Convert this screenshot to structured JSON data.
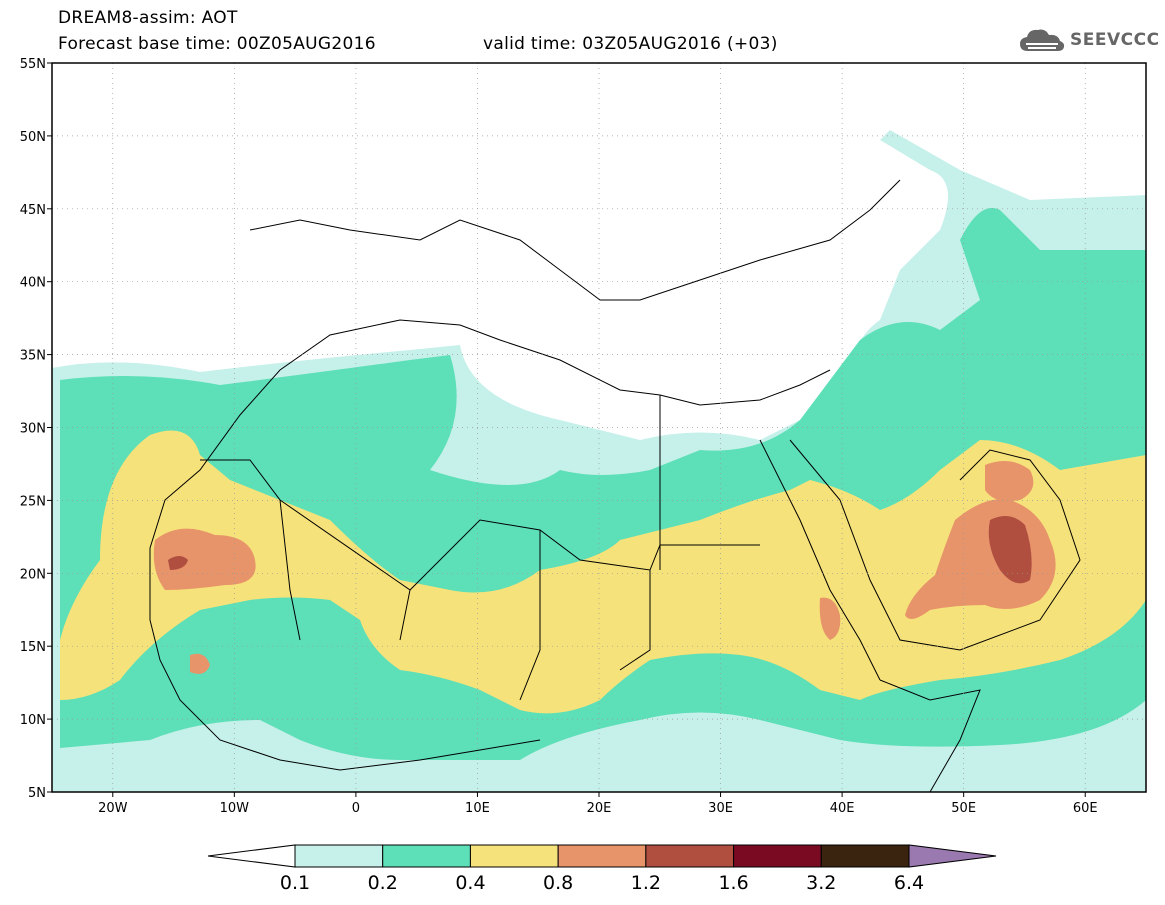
{
  "title": {
    "line1": "DREAM8-assim: AOT",
    "base_time": "Forecast base time: 00Z05AUG2016",
    "valid_time": "valid time: 03Z05AUG2016 (+03)"
  },
  "logo": {
    "text": "SEEVCCC",
    "icon": "cloud-icon"
  },
  "map": {
    "lon_range": [
      -25,
      65
    ],
    "lat_range": [
      5,
      55
    ],
    "lat_ticks": [
      {
        "value": 55,
        "label": "55N"
      },
      {
        "value": 50,
        "label": "50N"
      },
      {
        "value": 45,
        "label": "45N"
      },
      {
        "value": 40,
        "label": "40N"
      },
      {
        "value": 35,
        "label": "35N"
      },
      {
        "value": 30,
        "label": "30N"
      },
      {
        "value": 25,
        "label": "25N"
      },
      {
        "value": 20,
        "label": "20N"
      },
      {
        "value": 15,
        "label": "15N"
      },
      {
        "value": 10,
        "label": "10N"
      },
      {
        "value": 5,
        "label": "5N"
      }
    ],
    "lon_ticks": [
      {
        "value": -20,
        "label": "20W"
      },
      {
        "value": -10,
        "label": "10W"
      },
      {
        "value": 0,
        "label": "0"
      },
      {
        "value": 10,
        "label": "10E"
      },
      {
        "value": 20,
        "label": "20E"
      },
      {
        "value": 30,
        "label": "30E"
      },
      {
        "value": 40,
        "label": "40E"
      },
      {
        "value": 50,
        "label": "50E"
      },
      {
        "value": 60,
        "label": "60E"
      }
    ],
    "grid": "dotted"
  },
  "colorbar": {
    "labels": [
      "0.1",
      "0.2",
      "0.4",
      "0.8",
      "1.2",
      "1.6",
      "3.2",
      "6.4"
    ],
    "colors": [
      "#ffffff",
      "#c6f0ea",
      "#5ddfb8",
      "#f6e27a",
      "#e8946a",
      "#b04f40",
      "#7a0a22",
      "#3a2410",
      "#9a78b0"
    ]
  }
}
